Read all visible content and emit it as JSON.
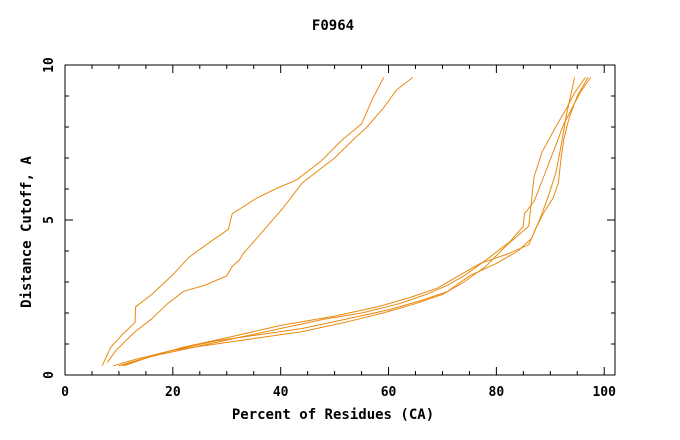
{
  "chart_data": {
    "type": "line",
    "title": "F0964",
    "xlabel": "Percent of Residues (CA)",
    "ylabel": "Distance Cutoff, A",
    "xlim": [
      0,
      102
    ],
    "ylim": [
      0,
      10
    ],
    "xticks": [
      0,
      20,
      40,
      60,
      80,
      100
    ],
    "xtick_labels": [
      "0",
      "20",
      "40",
      "60",
      "80",
      "100"
    ],
    "yticks": [
      0,
      5,
      10
    ],
    "ytick_labels": [
      "0",
      "5",
      "10"
    ],
    "grid": false,
    "line_color": "#e88a10",
    "series": [
      {
        "x": [
          6.9,
          8.5,
          10.6,
          13.0,
          13.1,
          16.1,
          19.8,
          23.0,
          27.0,
          30.3,
          31.0,
          35.5,
          39.0,
          43.0,
          47.5,
          51.5,
          55.0,
          57.0,
          59.1
        ],
        "y": [
          0.3,
          0.9,
          1.3,
          1.7,
          2.2,
          2.6,
          3.2,
          3.8,
          4.3,
          4.7,
          5.2,
          5.7,
          6.0,
          6.3,
          6.9,
          7.6,
          8.1,
          8.9,
          9.6
        ]
      },
      {
        "x": [
          7.8,
          9.5,
          13.0,
          16.0,
          19.0,
          22.0,
          26.0,
          30.0,
          31.0,
          32.3,
          33.0,
          34.5,
          37.0,
          40.5,
          44.0,
          47.0,
          50.0,
          53.5,
          56.0,
          59.0,
          61.5,
          64.5
        ],
        "y": [
          0.4,
          0.8,
          1.4,
          1.8,
          2.3,
          2.7,
          2.9,
          3.2,
          3.5,
          3.7,
          3.9,
          4.2,
          4.7,
          5.4,
          6.2,
          6.6,
          7.0,
          7.6,
          8.0,
          8.6,
          9.2,
          9.6
        ]
      },
      {
        "x": [
          10.0,
          14.0,
          20.0,
          28.0,
          36.0,
          44.0,
          52.0,
          60.0,
          66.0,
          71.0,
          75.0,
          80.0,
          84.0,
          86.5,
          88.0,
          89.5,
          91.0,
          92.0,
          93.0,
          94.5
        ],
        "y": [
          0.3,
          0.5,
          0.8,
          1.1,
          1.3,
          1.5,
          1.8,
          2.1,
          2.4,
          2.7,
          3.2,
          3.6,
          4.0,
          4.4,
          5.0,
          5.7,
          6.5,
          7.4,
          8.4,
          9.6
        ]
      },
      {
        "x": [
          9.0,
          13.0,
          20.0,
          28.0,
          36.0,
          44.0,
          52.0,
          59.0,
          65.0,
          70.0,
          74.0,
          78.0,
          82.0,
          86.0,
          86.5,
          87.0,
          88.5,
          91.0,
          93.0,
          94.5,
          96.5
        ],
        "y": [
          0.3,
          0.5,
          0.8,
          1.0,
          1.2,
          1.4,
          1.7,
          2.0,
          2.3,
          2.6,
          3.0,
          3.5,
          4.2,
          4.8,
          5.6,
          6.4,
          7.2,
          8.0,
          8.6,
          9.1,
          9.6
        ]
      },
      {
        "x": [
          10.5,
          16.0,
          24.0,
          32.0,
          40.0,
          48.0,
          55.0,
          62.0,
          67.0,
          71.0,
          74.0,
          78.0,
          82.5,
          85.0,
          85.2,
          87.0,
          89.0,
          91.0,
          92.5,
          94.0,
          95.5,
          97.5
        ],
        "y": [
          0.3,
          0.6,
          0.9,
          1.2,
          1.5,
          1.8,
          2.0,
          2.3,
          2.6,
          2.9,
          3.2,
          3.7,
          4.3,
          4.8,
          5.2,
          5.6,
          6.5,
          7.4,
          8.1,
          8.6,
          9.1,
          9.6
        ]
      },
      {
        "x": [
          11.0,
          16.0,
          22.0,
          30.0,
          40.0,
          50.0,
          58.0,
          64.0,
          69.0,
          73.0,
          77.0,
          82.0,
          86.0,
          87.5,
          89.0,
          90.5,
          91.5,
          92.0,
          92.5,
          93.5,
          95.0,
          97.0
        ],
        "y": [
          0.3,
          0.6,
          0.9,
          1.2,
          1.6,
          1.9,
          2.2,
          2.5,
          2.8,
          3.2,
          3.6,
          3.9,
          4.2,
          4.8,
          5.3,
          5.7,
          6.2,
          7.0,
          7.6,
          8.3,
          9.0,
          9.6
        ]
      }
    ]
  }
}
